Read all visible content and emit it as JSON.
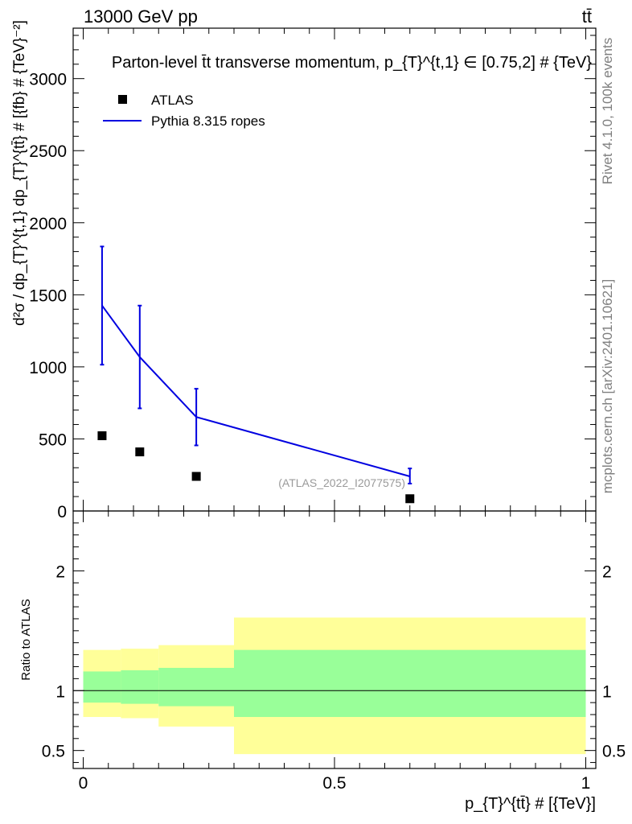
{
  "header": {
    "left": "13000 GeV pp",
    "right": "tt̄"
  },
  "side_labels": {
    "top": "Rivet 4.1.0,  100k events",
    "bottom": "mcplots.cern.ch [arXiv:2401.10621]"
  },
  "chart_data": [
    {
      "type": "line",
      "title": "Parton-level t̄t transverse momentum, p_{T}^{t,1} ∈ [0.75,2] # {TeV}",
      "ylabel": "d²σ / dp_{T}^{t,1} dp_{T}^{tt̄} # [{fb} # {TeV}⁻²]",
      "xlabel": "",
      "xlim": [
        -0.02,
        1.02
      ],
      "ylim": [
        0,
        3350
      ],
      "yticks": [
        0,
        500,
        1000,
        1500,
        2000,
        2500,
        3000
      ],
      "yticklabels": [
        "0",
        "500",
        "1000",
        "1500",
        "2000",
        "2500",
        "3000"
      ],
      "annotation": "(ATLAS_2022_I2077575)",
      "legend": {
        "position": "top-left",
        "entries": [
          "ATLAS",
          "Pythia 8.315 ropes"
        ]
      },
      "series": [
        {
          "name": "ATLAS",
          "kind": "markers",
          "color": "#000000",
          "x": [
            0.0375,
            0.1125,
            0.225,
            0.65
          ],
          "y": [
            522,
            410,
            240,
            85
          ]
        },
        {
          "name": "Pythia 8.315 ropes",
          "kind": "line",
          "color": "#0000e0",
          "x": [
            0.0375,
            0.1125,
            0.225,
            0.65
          ],
          "y": [
            1425,
            1068,
            652,
            240
          ],
          "yerr_low": [
            1015,
            712,
            455,
            190
          ],
          "yerr_high": [
            1835,
            1425,
            848,
            295
          ]
        }
      ]
    },
    {
      "type": "area",
      "ylabel": "Ratio to ATLAS",
      "xlabel": "p_{T}^{tt̄} # [{TeV}]",
      "xlim": [
        -0.02,
        1.02
      ],
      "ylim": [
        0.35,
        2.5
      ],
      "xticks": [
        0,
        0.5,
        1
      ],
      "xticklabels": [
        "0",
        "0.5",
        "1"
      ],
      "yticks": [
        0.5,
        1,
        2
      ],
      "yticklabels": [
        "0.5",
        "1",
        "2"
      ],
      "reference_line": 1,
      "bands": {
        "bins": [
          [
            0,
            0.075
          ],
          [
            0.075,
            0.15
          ],
          [
            0.15,
            0.3
          ],
          [
            0.3,
            1.0
          ]
        ],
        "outer_color": "#ffff99",
        "inner_color": "#99ff99",
        "outer_low": [
          0.78,
          0.77,
          0.7,
          0.47
        ],
        "outer_high": [
          1.34,
          1.35,
          1.38,
          1.61
        ],
        "inner_low": [
          0.9,
          0.89,
          0.87,
          0.78
        ],
        "inner_high": [
          1.16,
          1.17,
          1.19,
          1.34
        ]
      }
    }
  ]
}
